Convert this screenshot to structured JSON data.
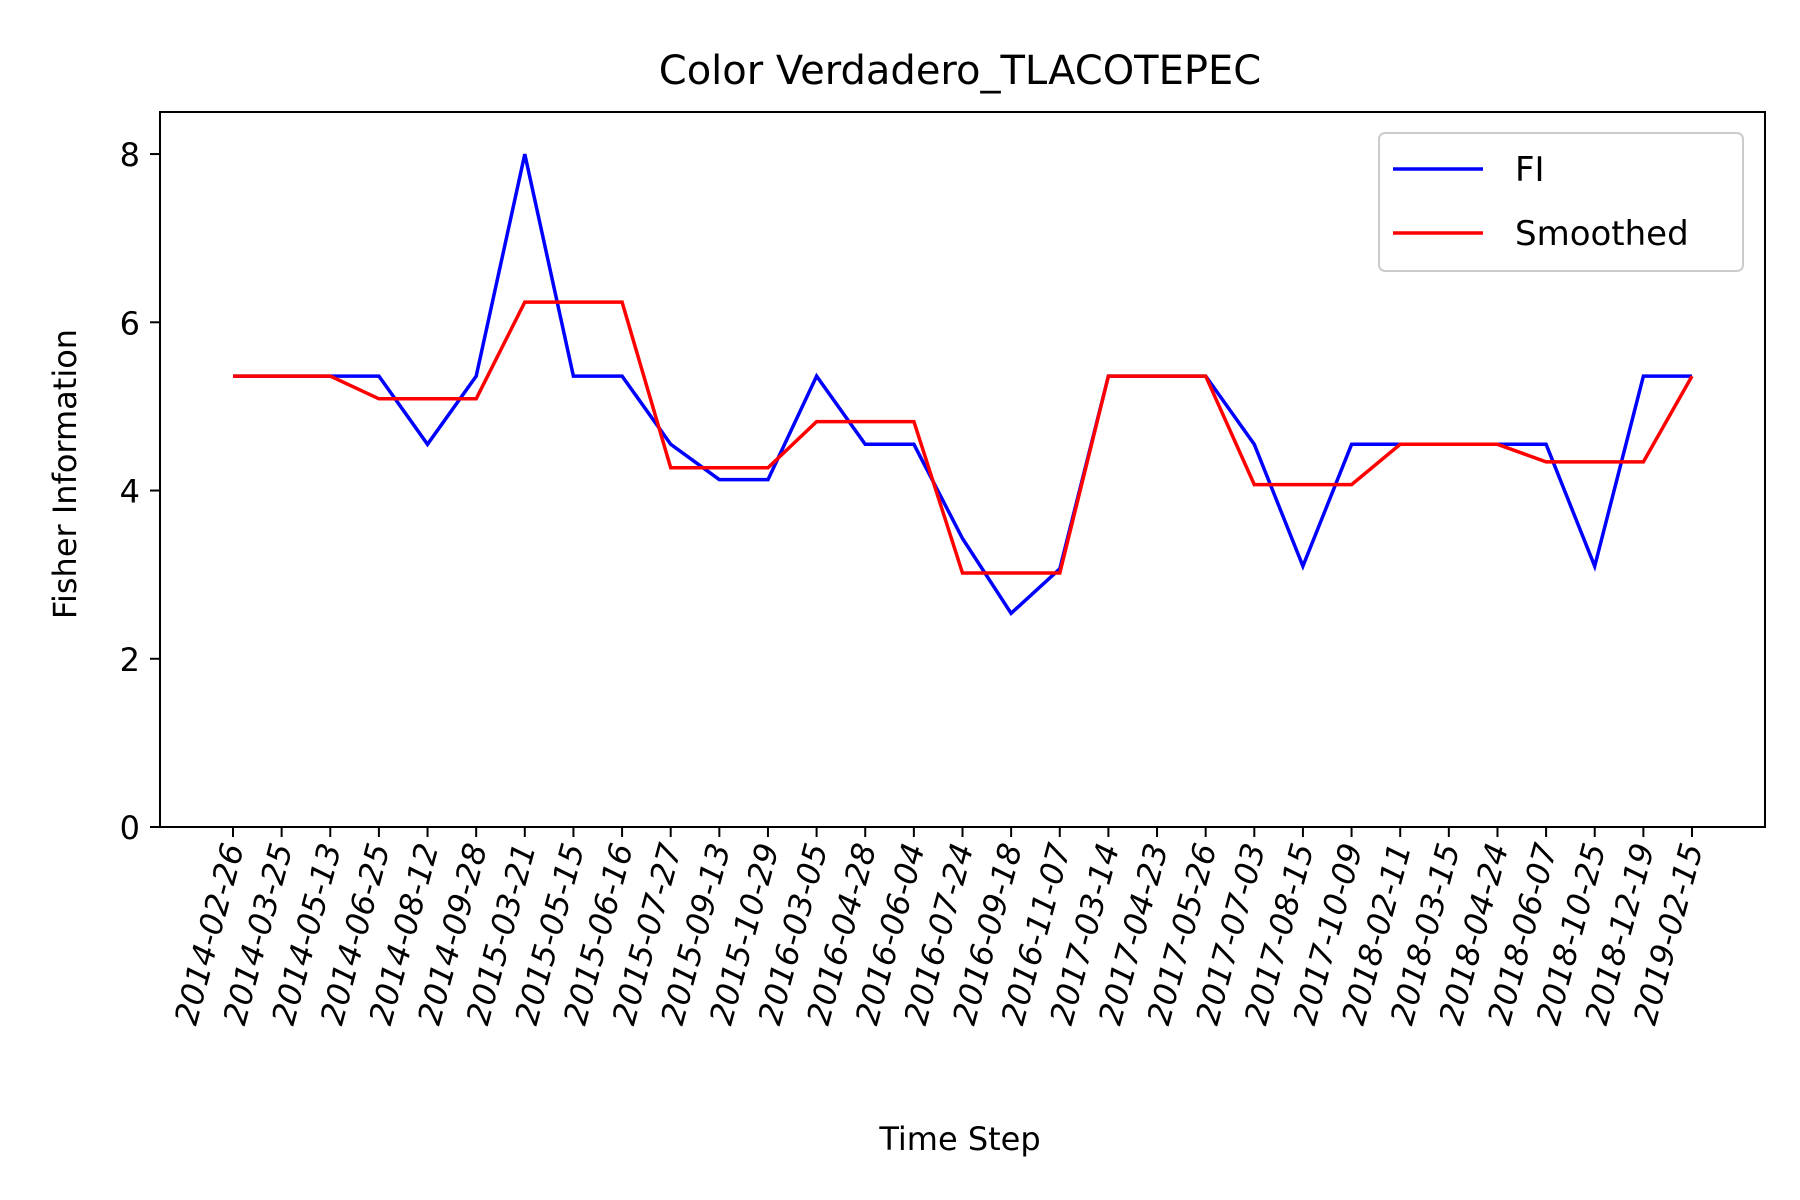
{
  "chart_data": {
    "type": "line",
    "title": "Color Verdadero_TLACOTEPEC",
    "xlabel": "Time Step",
    "ylabel": "Fisher Information",
    "ylim": [
      0,
      8.5
    ],
    "yticks": [
      0,
      2,
      4,
      6,
      8
    ],
    "grid": false,
    "legend_position": "top-right",
    "categories": [
      "2014-02-26",
      "2014-03-25",
      "2014-05-13",
      "2014-06-25",
      "2014-08-12",
      "2014-09-28",
      "2015-03-21",
      "2015-05-15",
      "2015-06-16",
      "2015-07-27",
      "2015-09-13",
      "2015-10-29",
      "2016-03-05",
      "2016-04-28",
      "2016-06-04",
      "2016-07-24",
      "2016-09-18",
      "2016-11-07",
      "2017-03-14",
      "2017-04-23",
      "2017-05-26",
      "2017-07-03",
      "2017-08-15",
      "2017-10-09",
      "2018-02-11",
      "2018-03-15",
      "2018-04-24",
      "2018-06-07",
      "2018-10-25",
      "2018-12-19",
      "2019-02-15"
    ],
    "series": [
      {
        "name": "FI",
        "color": "#0000ff",
        "values": [
          5.36,
          5.36,
          5.36,
          5.36,
          4.55,
          5.36,
          8.0,
          5.36,
          5.36,
          4.55,
          4.13,
          4.13,
          5.36,
          4.55,
          4.55,
          3.43,
          2.54,
          3.07,
          5.36,
          5.36,
          5.36,
          4.55,
          3.1,
          4.55,
          4.55,
          4.55,
          4.55,
          4.55,
          3.1,
          5.36,
          5.36
        ]
      },
      {
        "name": "Smoothed",
        "color": "#ff0000",
        "values": [
          5.36,
          5.36,
          5.36,
          5.09,
          5.09,
          5.09,
          6.24,
          6.24,
          6.24,
          4.27,
          4.27,
          4.27,
          4.82,
          4.82,
          4.82,
          3.02,
          3.02,
          3.02,
          5.36,
          5.36,
          5.36,
          4.07,
          4.07,
          4.07,
          4.55,
          4.55,
          4.55,
          4.34,
          4.34,
          4.34,
          5.36
        ]
      }
    ]
  }
}
